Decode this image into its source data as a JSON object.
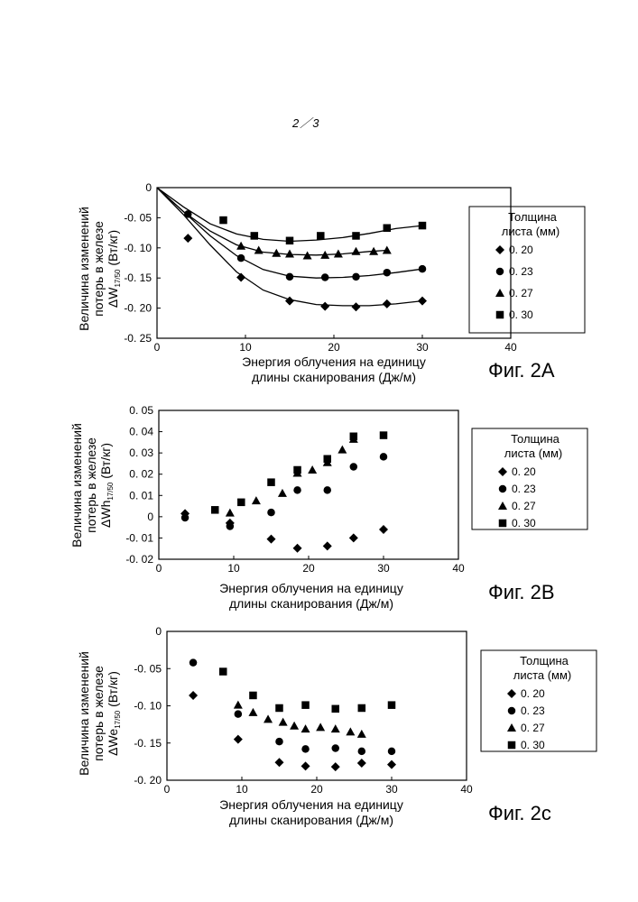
{
  "page_number": "2／3",
  "chart_data": [
    {
      "id": "fig2a",
      "type": "scatter",
      "figure_label": "Фиг. 2A",
      "ylabel_lines": [
        "Величина изменений",
        "потерь в железе"
      ],
      "ylabel_symbol": "ΔW",
      "ylabel_sub": "17/50",
      "ylabel_unit": " (Вт/кг)",
      "xlabel_lines": [
        "Энергия облучения на единицу",
        "длины сканирования (Дж/м)"
      ],
      "xlim": [
        0,
        40
      ],
      "ylim": [
        -0.25,
        0
      ],
      "xticks": [
        0,
        10,
        20,
        30,
        40
      ],
      "xtick_labels": [
        "0",
        "10",
        "20",
        "30",
        "40"
      ],
      "yticks": [
        0,
        -0.05,
        -0.1,
        -0.15,
        -0.2,
        -0.25
      ],
      "ytick_labels": [
        "0",
        "-0. 05",
        "-0. 10",
        "-0. 15",
        "-0. 20",
        "-0. 25"
      ],
      "legend_title_lines": [
        "Толщина",
        "листа (мм)"
      ],
      "legend_position": "right",
      "series": [
        {
          "name": "0. 20",
          "marker": "diamond",
          "x": [
            3.5,
            9.5,
            15,
            19,
            22.5,
            26,
            30
          ],
          "y": [
            -0.084,
            -0.149,
            -0.188,
            -0.197,
            -0.198,
            -0.193,
            -0.188
          ],
          "fit": [
            [
              0,
              0
            ],
            [
              3,
              -0.045
            ],
            [
              6,
              -0.095
            ],
            [
              9,
              -0.14
            ],
            [
              12,
              -0.17
            ],
            [
              15,
              -0.186
            ],
            [
              18,
              -0.194
            ],
            [
              21,
              -0.196
            ],
            [
              24,
              -0.196
            ],
            [
              27,
              -0.193
            ],
            [
              30,
              -0.188
            ]
          ]
        },
        {
          "name": "0. 23",
          "marker": "circle",
          "x": [
            3.5,
            9.5,
            15,
            19,
            22.5,
            26,
            30
          ],
          "y": [
            -0.044,
            -0.117,
            -0.148,
            -0.149,
            -0.148,
            -0.141,
            -0.135
          ],
          "fit": [
            [
              0,
              0
            ],
            [
              3,
              -0.04
            ],
            [
              6,
              -0.08
            ],
            [
              9,
              -0.113
            ],
            [
              12,
              -0.136
            ],
            [
              15,
              -0.147
            ],
            [
              18,
              -0.15
            ],
            [
              21,
              -0.149
            ],
            [
              24,
              -0.146
            ],
            [
              27,
              -0.141
            ],
            [
              30,
              -0.135
            ]
          ]
        },
        {
          "name": "0. 27",
          "marker": "triangle",
          "x": [
            9.5,
            11.5,
            13.5,
            15,
            17,
            19,
            20.5,
            22.5,
            24.5,
            26
          ],
          "y": [
            -0.097,
            -0.104,
            -0.109,
            -0.11,
            -0.113,
            -0.112,
            -0.11,
            -0.106,
            -0.106,
            -0.104
          ],
          "fit": [
            [
              0,
              0
            ],
            [
              3,
              -0.04
            ],
            [
              6,
              -0.072
            ],
            [
              9,
              -0.095
            ],
            [
              12,
              -0.107
            ],
            [
              15,
              -0.111
            ],
            [
              18,
              -0.112
            ],
            [
              21,
              -0.11
            ],
            [
              24,
              -0.106
            ],
            [
              26,
              -0.104
            ]
          ]
        },
        {
          "name": "0. 30",
          "marker": "square",
          "x": [
            7.5,
            11,
            15,
            18.5,
            22.5,
            26,
            30
          ],
          "y": [
            -0.054,
            -0.08,
            -0.088,
            -0.08,
            -0.08,
            -0.067,
            -0.063
          ],
          "fit": [
            [
              0,
              0
            ],
            [
              3,
              -0.032
            ],
            [
              6,
              -0.06
            ],
            [
              9,
              -0.077
            ],
            [
              12,
              -0.086
            ],
            [
              15,
              -0.089
            ],
            [
              18,
              -0.087
            ],
            [
              21,
              -0.083
            ],
            [
              24,
              -0.076
            ],
            [
              27,
              -0.068
            ],
            [
              30,
              -0.063
            ]
          ]
        }
      ]
    },
    {
      "id": "fig2b",
      "type": "scatter",
      "figure_label": "Фиг. 2B",
      "ylabel_lines": [
        "Величина изменений",
        "потерь в железе"
      ],
      "ylabel_symbol": "ΔWh",
      "ylabel_sub": "17/50",
      "ylabel_unit": " (Вт/кг)",
      "xlabel_lines": [
        "Энергия облучения на единицу",
        "длины сканирования (Дж/м)"
      ],
      "xlim": [
        0,
        40
      ],
      "ylim": [
        -0.02,
        0.05
      ],
      "xticks": [
        0,
        10,
        20,
        30,
        40
      ],
      "xtick_labels": [
        "0",
        "10",
        "20",
        "30",
        "40"
      ],
      "yticks": [
        0.05,
        0.04,
        0.03,
        0.02,
        0.01,
        0,
        -0.01,
        -0.02
      ],
      "ytick_labels": [
        "0. 05",
        "0. 04",
        "0. 03",
        "0. 02",
        "0. 01",
        "0",
        "-0. 01",
        "-0. 02"
      ],
      "legend_title_lines": [
        "Толщина",
        "листа (мм)"
      ],
      "legend_position": "right",
      "series": [
        {
          "name": "0. 20",
          "marker": "diamond",
          "x": [
            3.5,
            9.5,
            15,
            18.5,
            22.5,
            26,
            30
          ],
          "y": [
            0.0015,
            -0.003,
            -0.0105,
            -0.0148,
            -0.0138,
            -0.01,
            -0.006
          ]
        },
        {
          "name": "0. 23",
          "marker": "circle",
          "x": [
            3.5,
            9.5,
            15,
            18.5,
            22.5,
            26,
            30
          ],
          "y": [
            -0.0005,
            -0.0045,
            0.002,
            0.0125,
            0.0125,
            0.0235,
            0.0282
          ]
        },
        {
          "name": "0. 27",
          "marker": "triangle",
          "x": [
            9.5,
            13,
            16.5,
            18.5,
            20.5,
            22.5,
            24.5,
            26
          ],
          "y": [
            0.0018,
            0.0075,
            0.011,
            0.0205,
            0.022,
            0.0255,
            0.0315,
            0.0365
          ]
        },
        {
          "name": "0. 30",
          "marker": "square",
          "x": [
            7.5,
            11,
            15,
            18.5,
            22.5,
            26,
            30
          ],
          "y": [
            0.0032,
            0.0068,
            0.0162,
            0.022,
            0.0272,
            0.0378,
            0.0383
          ]
        }
      ]
    },
    {
      "id": "fig2c",
      "type": "scatter",
      "figure_label": "Фиг. 2c",
      "ylabel_lines": [
        "Величина изменений",
        "потерь в железе"
      ],
      "ylabel_symbol": "ΔWe",
      "ylabel_sub": "17/50",
      "ylabel_unit": " (Вт/кг)",
      "xlabel_lines": [
        "Энергия облучения на единицу",
        "длины сканирования (Дж/м)"
      ],
      "xlim": [
        0,
        40
      ],
      "ylim": [
        -0.2,
        0
      ],
      "xticks": [
        0,
        10,
        20,
        30,
        40
      ],
      "xtick_labels": [
        "0",
        "10",
        "20",
        "30",
        "40"
      ],
      "yticks": [
        0,
        -0.05,
        -0.1,
        -0.15,
        -0.2
      ],
      "ytick_labels": [
        "0",
        "-0. 05",
        "-0. 10",
        "-0. 15",
        "-0. 20"
      ],
      "legend_title_lines": [
        "Толщина",
        "листа (мм)"
      ],
      "legend_position": "right",
      "series": [
        {
          "name": "0. 20",
          "marker": "diamond",
          "x": [
            3.5,
            9.5,
            15,
            18.5,
            22.5,
            26,
            30
          ],
          "y": [
            -0.086,
            -0.145,
            -0.176,
            -0.181,
            -0.182,
            -0.177,
            -0.179
          ]
        },
        {
          "name": "0. 23",
          "marker": "circle",
          "x": [
            3.5,
            9.5,
            15,
            18.5,
            22.5,
            26,
            30
          ],
          "y": [
            -0.042,
            -0.111,
            -0.148,
            -0.158,
            -0.157,
            -0.161,
            -0.161
          ]
        },
        {
          "name": "0. 27",
          "marker": "triangle",
          "x": [
            9.5,
            11.5,
            13.5,
            15.5,
            17,
            18.5,
            20.5,
            22.5,
            24.5,
            26
          ],
          "y": [
            -0.099,
            -0.109,
            -0.118,
            -0.122,
            -0.127,
            -0.131,
            -0.129,
            -0.131,
            -0.135,
            -0.138
          ]
        },
        {
          "name": "0. 30",
          "marker": "square",
          "x": [
            7.5,
            11.5,
            15,
            18.5,
            22.5,
            26,
            30
          ],
          "y": [
            -0.054,
            -0.086,
            -0.103,
            -0.099,
            -0.104,
            -0.103,
            -0.099
          ]
        }
      ]
    }
  ]
}
